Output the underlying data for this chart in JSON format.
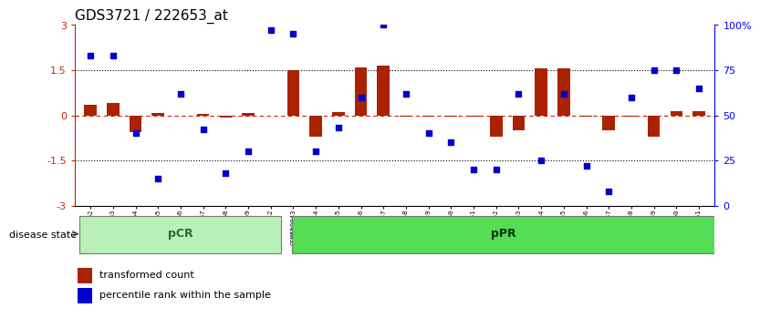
{
  "title": "GDS3721 / 222653_at",
  "samples": [
    "GSM559062",
    "GSM559063",
    "GSM559064",
    "GSM559065",
    "GSM559066",
    "GSM559067",
    "GSM559068",
    "GSM559069",
    "GSM559042",
    "GSM559043",
    "GSM559044",
    "GSM559045",
    "GSM559046",
    "GSM559047",
    "GSM559048",
    "GSM559049",
    "GSM559050",
    "GSM559051",
    "GSM559052",
    "GSM559053",
    "GSM559054",
    "GSM559055",
    "GSM559056",
    "GSM559057",
    "GSM559058",
    "GSM559059",
    "GSM559060",
    "GSM559061"
  ],
  "transformed_count": [
    0.35,
    0.4,
    -0.55,
    0.07,
    -0.02,
    0.05,
    -0.08,
    0.08,
    0.0,
    1.5,
    -0.7,
    0.12,
    1.6,
    1.65,
    -0.05,
    -0.05,
    -0.05,
    -0.05,
    -0.7,
    -0.5,
    1.55,
    1.55,
    -0.05,
    -0.5,
    -0.05,
    -0.7,
    0.15,
    0.15
  ],
  "percentile_rank": [
    83,
    83,
    40,
    15,
    62,
    42,
    18,
    30,
    97,
    95,
    30,
    43,
    60,
    100,
    62,
    40,
    35,
    20,
    20,
    62,
    25,
    62,
    22,
    8,
    60,
    75,
    75,
    65
  ],
  "pcr_count": 9,
  "ppr_count": 19,
  "ylim_left": [
    -3,
    3
  ],
  "ylim_right": [
    0,
    100
  ],
  "bar_color": "#aa2200",
  "dot_color": "#0000cc",
  "pcr_fill": "#b8f0b8",
  "ppr_fill": "#55dd55",
  "zero_line_color": "#cc2200",
  "background_color": "#ffffff",
  "title_fontsize": 11,
  "legend_bar_label": "transformed count",
  "legend_dot_label": "percentile rank within the sample",
  "disease_label": "disease state"
}
